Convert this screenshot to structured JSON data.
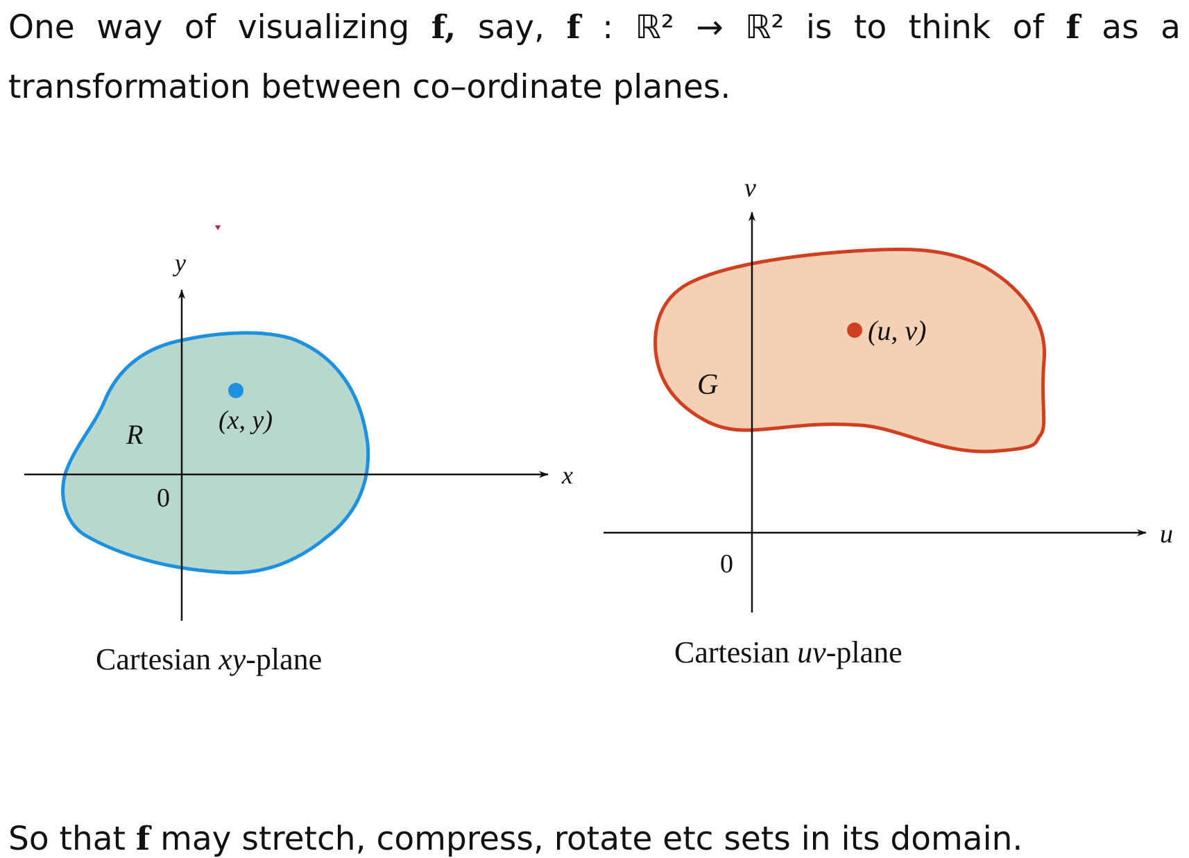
{
  "text": {
    "line1": [
      {
        "t": "One"
      },
      {
        "t": "way"
      },
      {
        "t": "of"
      },
      {
        "t": "visualizing"
      },
      {
        "t": "f,",
        "bold": true
      },
      {
        "t": "say,"
      },
      {
        "t": "f",
        "bold": true
      },
      {
        "t": ":"
      },
      {
        "t": "ℝ²"
      },
      {
        "t": "→"
      },
      {
        "t": "ℝ²"
      },
      {
        "t": "is"
      },
      {
        "t": "to"
      },
      {
        "t": "think"
      },
      {
        "t": "of"
      },
      {
        "t": "f",
        "bold": true
      },
      {
        "t": "as"
      },
      {
        "t": "a"
      }
    ],
    "line2": "transformation between co–ordinate planes.",
    "line3_pre": "So that ",
    "line3_f": "f",
    "line3_post": " may stretch, compress, rotate etc sets in its domain."
  },
  "xy_plane": {
    "caption_pre": "Cartesian ",
    "caption_var": "xy",
    "caption_post": "-plane",
    "x_axis_label": "x",
    "y_axis_label": "y",
    "origin_label": "0",
    "region_label": "R",
    "point_label": "(x, y)",
    "region_fill": "#b8d8cd",
    "region_stroke": "#1e90e0",
    "point_color": "#1e90e0"
  },
  "uv_plane": {
    "caption_pre": "Cartesian ",
    "caption_var": "uv",
    "caption_post": "-plane",
    "u_axis_label": "u",
    "v_axis_label": "v",
    "origin_label": "0",
    "region_label": "G",
    "point_label": "(u, v)",
    "region_fill": "#f4d0b5",
    "region_stroke": "#d04020",
    "point_color": "#d04020"
  }
}
